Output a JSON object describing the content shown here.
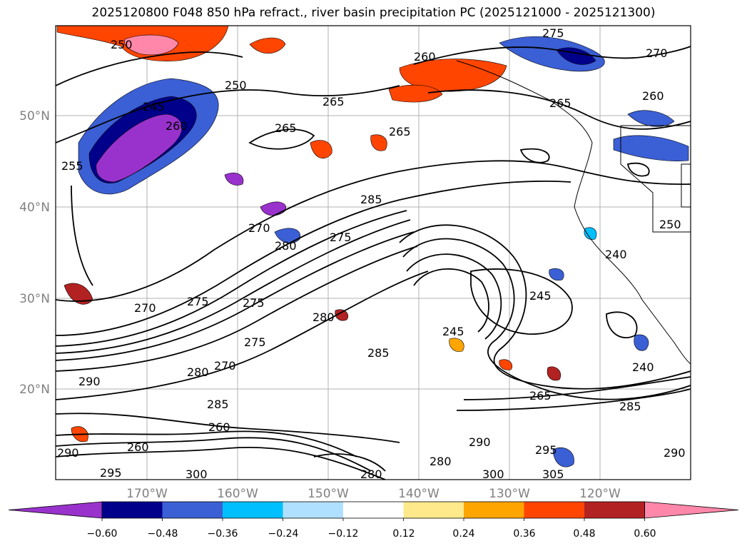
{
  "title": "2025120800 F048 850 hPa refract., river basin precipitation PC (2025121000 - 2025121300)",
  "map": {
    "lat_labels": [
      "50°N",
      "40°N",
      "30°N",
      "20°N"
    ],
    "lon_labels": [
      "170°W",
      "160°W",
      "150°W",
      "140°W",
      "130°W",
      "120°W"
    ],
    "contour_labels": [
      "250",
      "245",
      "260",
      "265",
      "265",
      "255",
      "250",
      "260",
      "265",
      "275",
      "270",
      "260",
      "265",
      "285",
      "280",
      "275",
      "270",
      "275",
      "270",
      "280",
      "275",
      "280",
      "290",
      "285",
      "270",
      "275",
      "285",
      "260",
      "295",
      "300",
      "290",
      "280",
      "260",
      "245",
      "240",
      "245",
      "265",
      "285",
      "290",
      "280",
      "300",
      "305",
      "295",
      "290",
      "240",
      "250"
    ]
  },
  "colorbar": {
    "tick_labels": [
      "−0.60",
      "−0.48",
      "−0.36",
      "−0.24",
      "−0.12",
      "0.12",
      "0.24",
      "0.36",
      "0.48",
      "0.60"
    ],
    "colors": [
      "#9932cc",
      "#00008b",
      "#3b5fd4",
      "#00bfff",
      "#b0e0ff",
      "#ffffff",
      "#ffe98a",
      "#ffa500",
      "#ff4500",
      "#b22222",
      "#ff88aa"
    ]
  }
}
